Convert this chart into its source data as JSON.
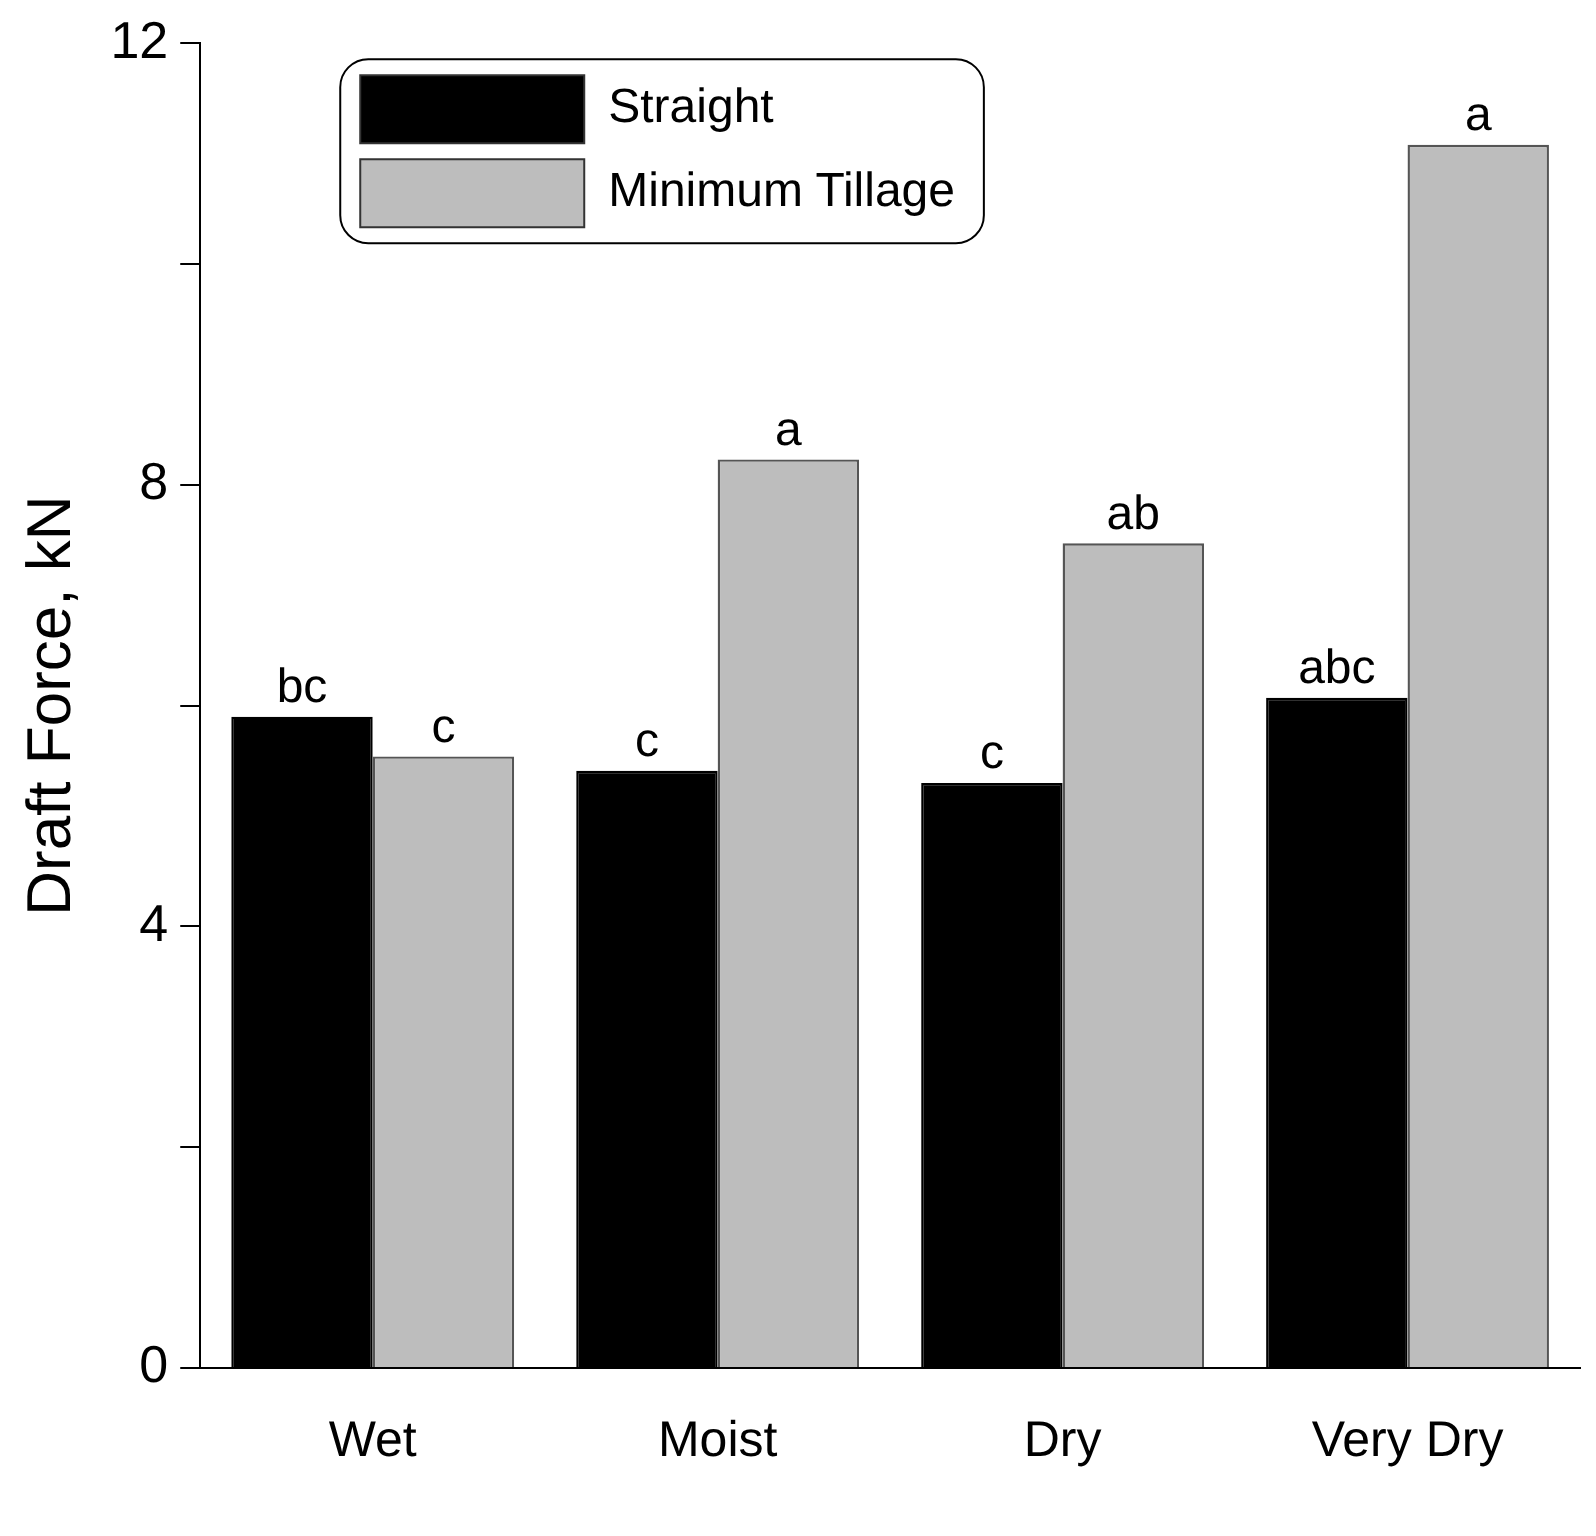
{
  "chart_data": {
    "type": "bar",
    "ylabel": "Draft Force, kN",
    "categories": [
      "Wet",
      "Moist",
      "Dry",
      "Very Dry"
    ],
    "series": [
      {
        "name": "Straight",
        "color": "#000000",
        "values": [
          5.9,
          5.41,
          5.3,
          6.07
        ],
        "value_labels": [
          "bc",
          "c",
          "c",
          "abc"
        ]
      },
      {
        "name": "Minimum Tillage",
        "color": "#bdbdbd",
        "values": [
          5.54,
          8.23,
          7.47,
          11.08
        ],
        "value_labels": [
          "c",
          "a",
          "ab",
          "a"
        ]
      }
    ],
    "ylim": [
      0,
      12
    ],
    "yticks": [
      0,
      {
        "value": 2,
        "label": null
      },
      4,
      {
        "value": 6,
        "label": null
      },
      8,
      {
        "value": 10,
        "label": null
      },
      12
    ],
    "grid": false,
    "legend": "top left"
  }
}
